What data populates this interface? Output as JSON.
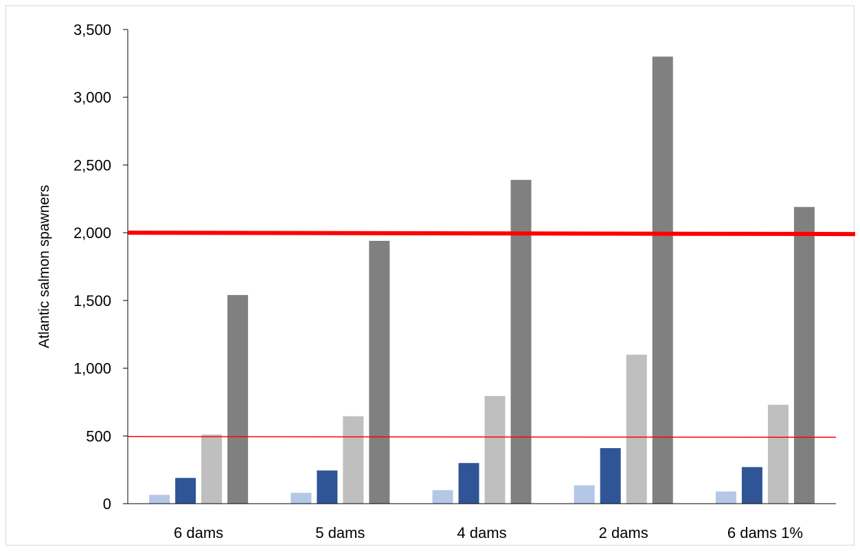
{
  "chart_data": {
    "type": "bar",
    "title": "",
    "xlabel": "",
    "ylabel": "Atlantic salmon spawners",
    "ylim": [
      0,
      3500
    ],
    "y_ticks": [
      0,
      500,
      1000,
      1500,
      2000,
      2500,
      3000,
      3500
    ],
    "y_tick_labels": [
      "0",
      "500",
      "1,000",
      "1,500",
      "2,000",
      "2,500",
      "3,000",
      "3,500"
    ],
    "categories": [
      "6 dams",
      "5 dams",
      "4 dams",
      "2 dams",
      "6 dams 1%"
    ],
    "series": [
      {
        "color": "#b4c7e7",
        "values": [
          65,
          80,
          100,
          135,
          90
        ]
      },
      {
        "color": "#2f5597",
        "values": [
          190,
          245,
          300,
          410,
          270
        ]
      },
      {
        "color": "#bfbfbf",
        "values": [
          510,
          645,
          795,
          1100,
          730
        ]
      },
      {
        "color": "#808080",
        "values": [
          1540,
          1940,
          2390,
          3300,
          2190
        ]
      }
    ],
    "reference_lines": [
      {
        "value": 2000,
        "value_at_right_edge": 1990,
        "color": "#ff0000",
        "style": "thick"
      },
      {
        "value": 495,
        "value_at_right_edge": 490,
        "color": "#ff0000",
        "style": "thin"
      }
    ],
    "grid": false,
    "legend": "none"
  }
}
